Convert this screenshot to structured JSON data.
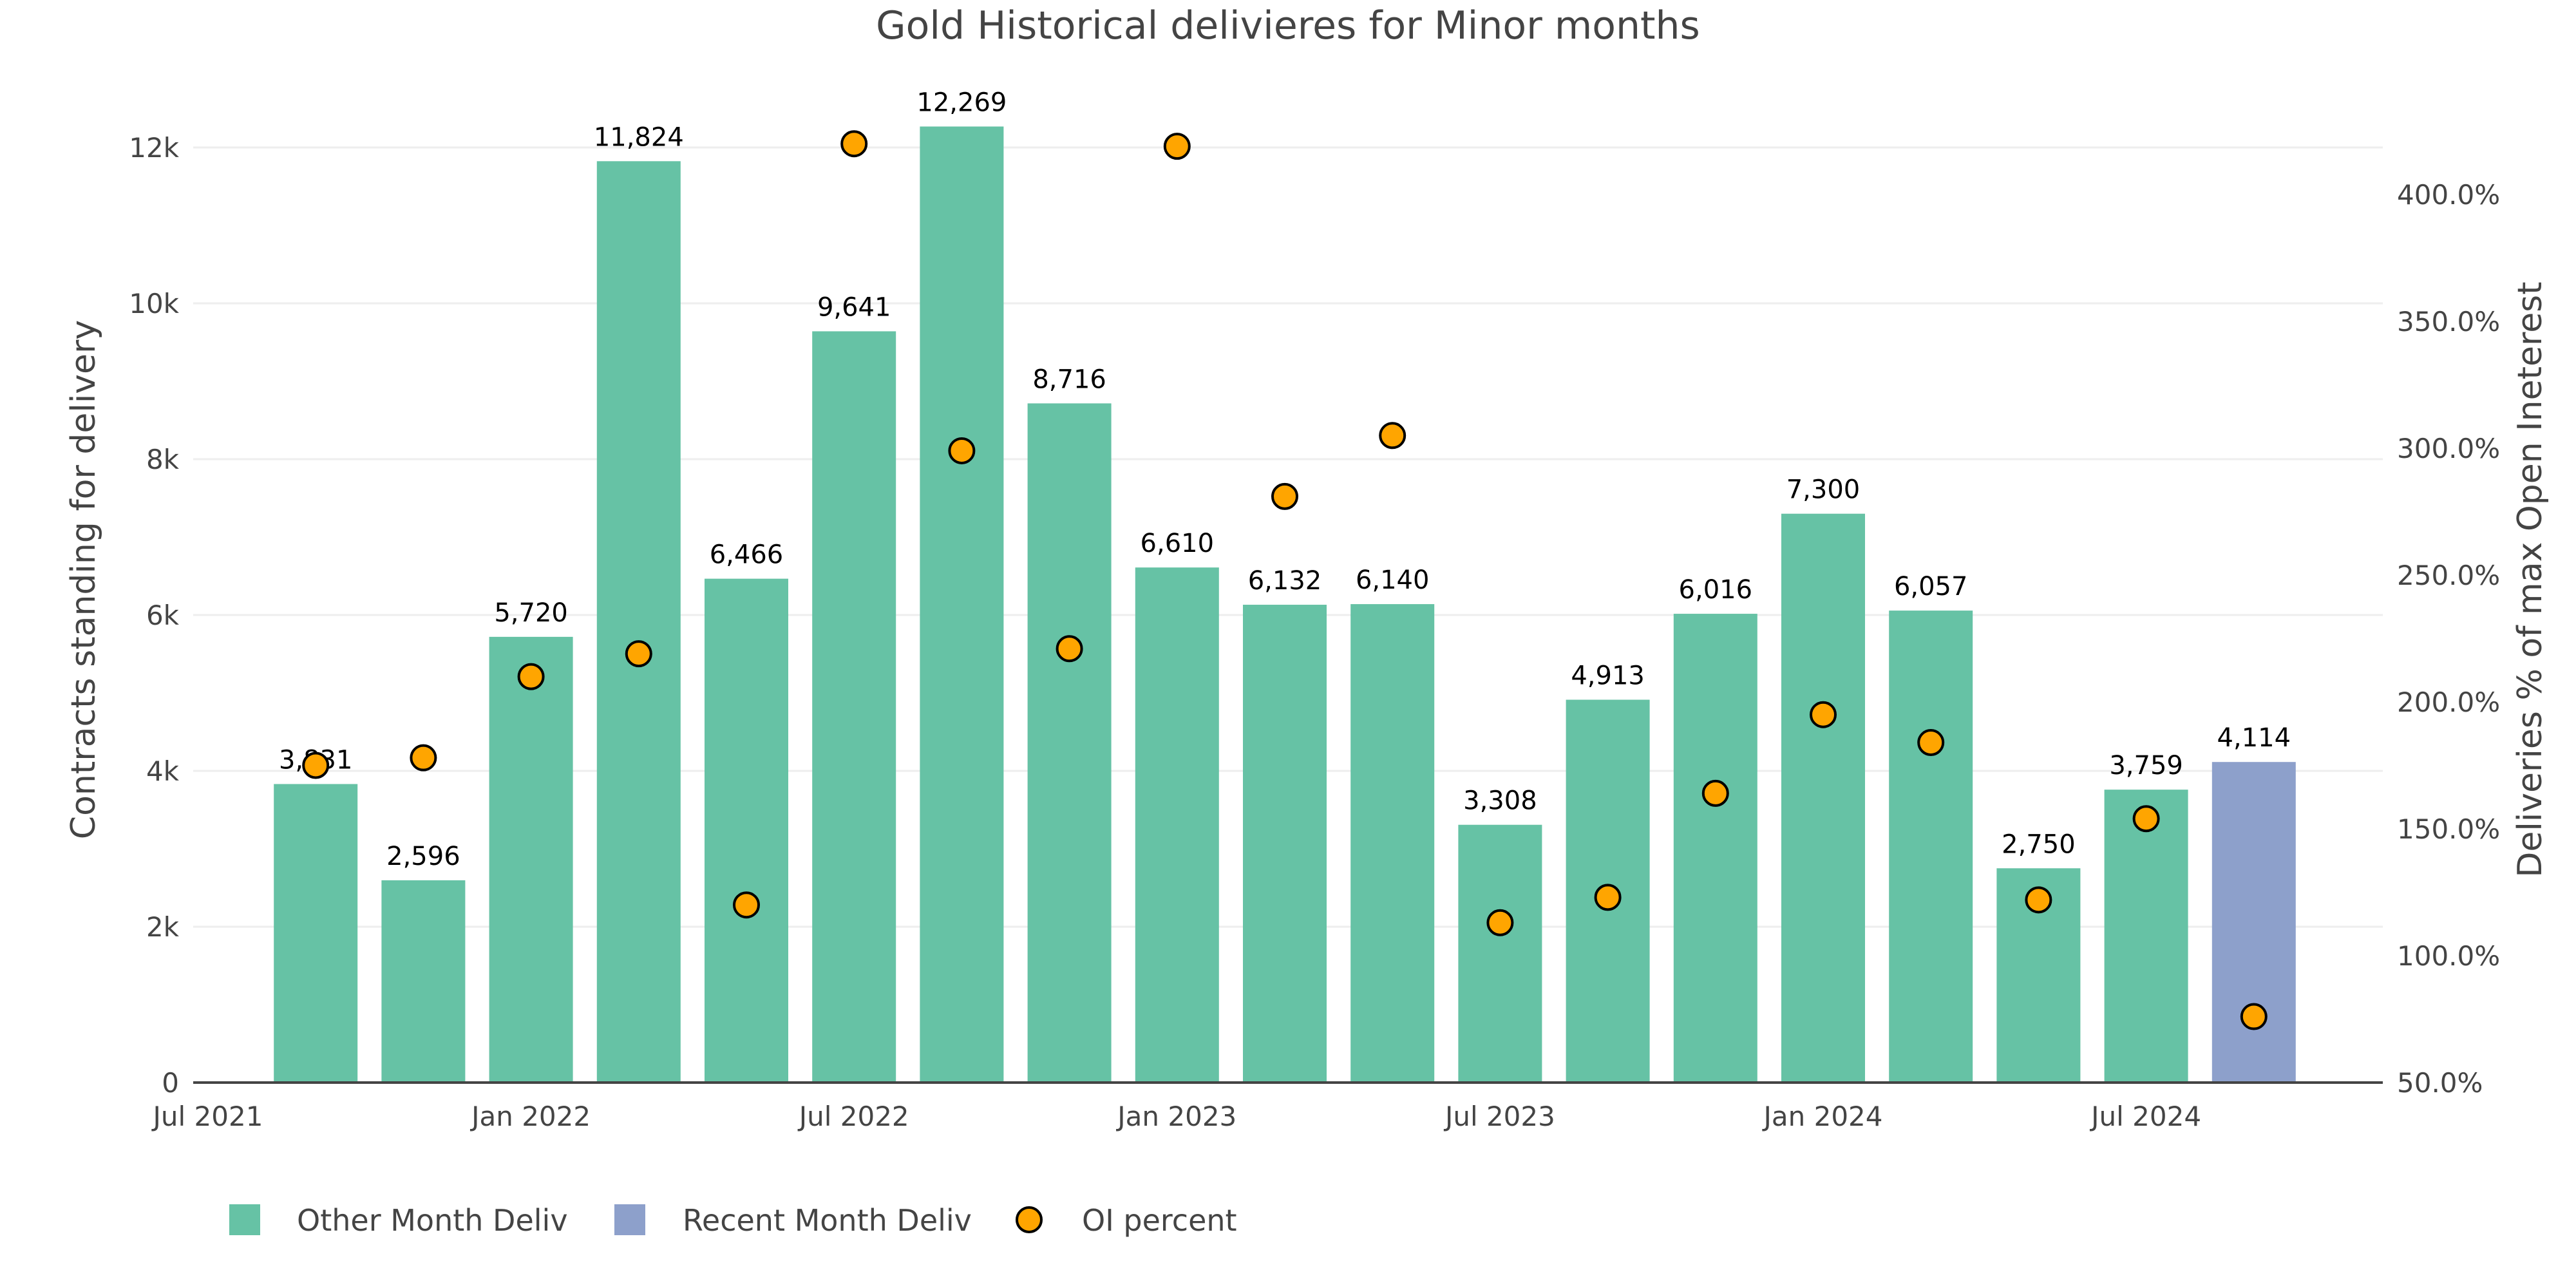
{
  "chart_data": {
    "type": "bar",
    "title": "Gold Historical delivieres for Minor months",
    "xlabel": "",
    "ylabel": "Contracts standing for delivery",
    "y2label": "Deliveries % of max Open Ineterest",
    "ylim": [
      0,
      12900
    ],
    "y2lim": [
      50,
      418
    ],
    "grid": true,
    "legend_position": "bottom-left",
    "x_ticks": [
      "Jul 2021",
      "Jan 2022",
      "Jul 2022",
      "Jan 2023",
      "Jul 2023",
      "Jan 2024",
      "Jul 2024"
    ],
    "x_tick_months": [
      "2021-07",
      "2022-01",
      "2022-07",
      "2023-01",
      "2023-07",
      "2024-01",
      "2024-07"
    ],
    "y_ticks": [
      {
        "value": 0,
        "label": "0"
      },
      {
        "value": 2000,
        "label": "2k"
      },
      {
        "value": 4000,
        "label": "4k"
      },
      {
        "value": 6000,
        "label": "6k"
      },
      {
        "value": 8000,
        "label": "8k"
      },
      {
        "value": 10000,
        "label": "10k"
      },
      {
        "value": 12000,
        "label": "12k"
      }
    ],
    "y2_ticks": [
      {
        "value": 50,
        "label": "50.0%"
      },
      {
        "value": 100,
        "label": "100.0%"
      },
      {
        "value": 150,
        "label": "150.0%"
      },
      {
        "value": 200,
        "label": "200.0%"
      },
      {
        "value": 250,
        "label": "250.0%"
      },
      {
        "value": 300,
        "label": "300.0%"
      },
      {
        "value": 350,
        "label": "350.0%"
      },
      {
        "value": 400,
        "label": "400.0%"
      }
    ],
    "categories": [
      "2021-09",
      "2021-11",
      "2022-01",
      "2022-03",
      "2022-05",
      "2022-07",
      "2022-09",
      "2022-11",
      "2023-01",
      "2023-03",
      "2023-05",
      "2023-07",
      "2023-09",
      "2023-11",
      "2024-01",
      "2024-03",
      "2024-05",
      "2024-07",
      "2024-09"
    ],
    "series": [
      {
        "name": "Other Month Deliv",
        "type": "bar",
        "axis": "left",
        "color": "#66c2a5",
        "values": [
          3831,
          2596,
          5720,
          11824,
          6466,
          9641,
          12269,
          8716,
          6610,
          6132,
          6140,
          3308,
          4913,
          6016,
          7300,
          6057,
          2750,
          3759,
          null
        ],
        "labels": [
          "3,831",
          "2,596",
          "5,720",
          "11,824",
          "6,466",
          "9,641",
          "12,269",
          "8,716",
          "6,610",
          "6,132",
          "6,140",
          "3,308",
          "4,913",
          "6,016",
          "7,300",
          "6,057",
          "2,750",
          "3,759",
          null
        ]
      },
      {
        "name": "Recent Month Deliv",
        "type": "bar",
        "axis": "left",
        "color": "#8da0cb",
        "values": [
          null,
          null,
          null,
          null,
          null,
          null,
          null,
          null,
          null,
          null,
          null,
          null,
          null,
          null,
          null,
          null,
          null,
          null,
          4114
        ],
        "labels": [
          null,
          null,
          null,
          null,
          null,
          null,
          null,
          null,
          null,
          null,
          null,
          null,
          null,
          null,
          null,
          null,
          null,
          null,
          "4,114"
        ]
      },
      {
        "name": "OI percent",
        "type": "scatter",
        "axis": "right",
        "color": "#ffa500",
        "values": [
          175,
          178,
          210,
          219,
          120,
          420,
          299,
          221,
          419,
          281,
          305,
          113,
          123,
          164,
          195,
          184,
          122,
          154,
          76
        ]
      }
    ]
  },
  "colors": {
    "text": "#444444",
    "grid": "#eeeeee",
    "axis_line": "#444444",
    "marker_outline": "#000000"
  }
}
